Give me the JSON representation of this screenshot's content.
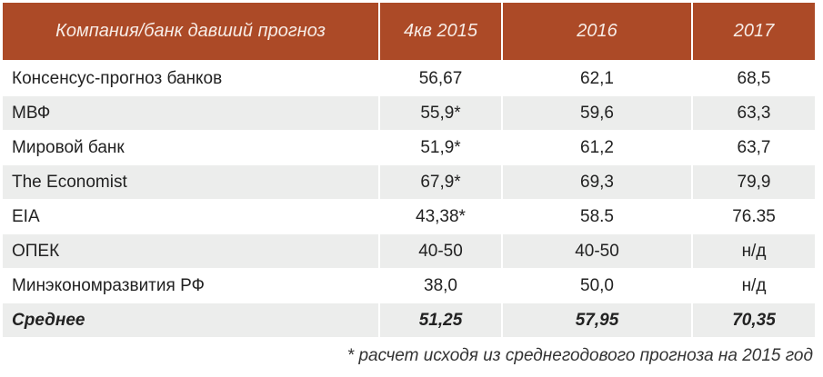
{
  "table": {
    "header": {
      "col1": "Компания/банк давший прогноз",
      "col2": "4кв 2015",
      "col3": "2016",
      "col4": "2017"
    },
    "rows": [
      {
        "name": "Консенсус-прогноз банков",
        "q4_2015": "56,67",
        "y2016": "62,1",
        "y2017": "68,5"
      },
      {
        "name": "МВФ",
        "q4_2015": "55,9*",
        "y2016": "59,6",
        "y2017": "63,3"
      },
      {
        "name": "Мировой банк",
        "q4_2015": "51,9*",
        "y2016": "61,2",
        "y2017": "63,7"
      },
      {
        "name": "The Economist",
        "q4_2015": "67,9*",
        "y2016": "69,3",
        "y2017": "79,9"
      },
      {
        "name": "EIA",
        "q4_2015": "43,38*",
        "y2016": "58.5",
        "y2017": "76.35"
      },
      {
        "name": "ОПЕК",
        "q4_2015": "40-50",
        "y2016": "40-50",
        "y2017": "н/д"
      },
      {
        "name": "Минэкономразвития РФ",
        "q4_2015": "38,0",
        "y2016": "50,0",
        "y2017": "н/д"
      },
      {
        "name": "Среднее",
        "q4_2015": "51,25",
        "y2016": "57,95",
        "y2017": "70,35"
      }
    ]
  },
  "footnote": "* расчет исходя из среднегодового прогноза на 2015 год",
  "colors": {
    "header_bg": "#ac4a27",
    "header_text": "#f7ece6",
    "shaded_row": "#ecedec"
  }
}
